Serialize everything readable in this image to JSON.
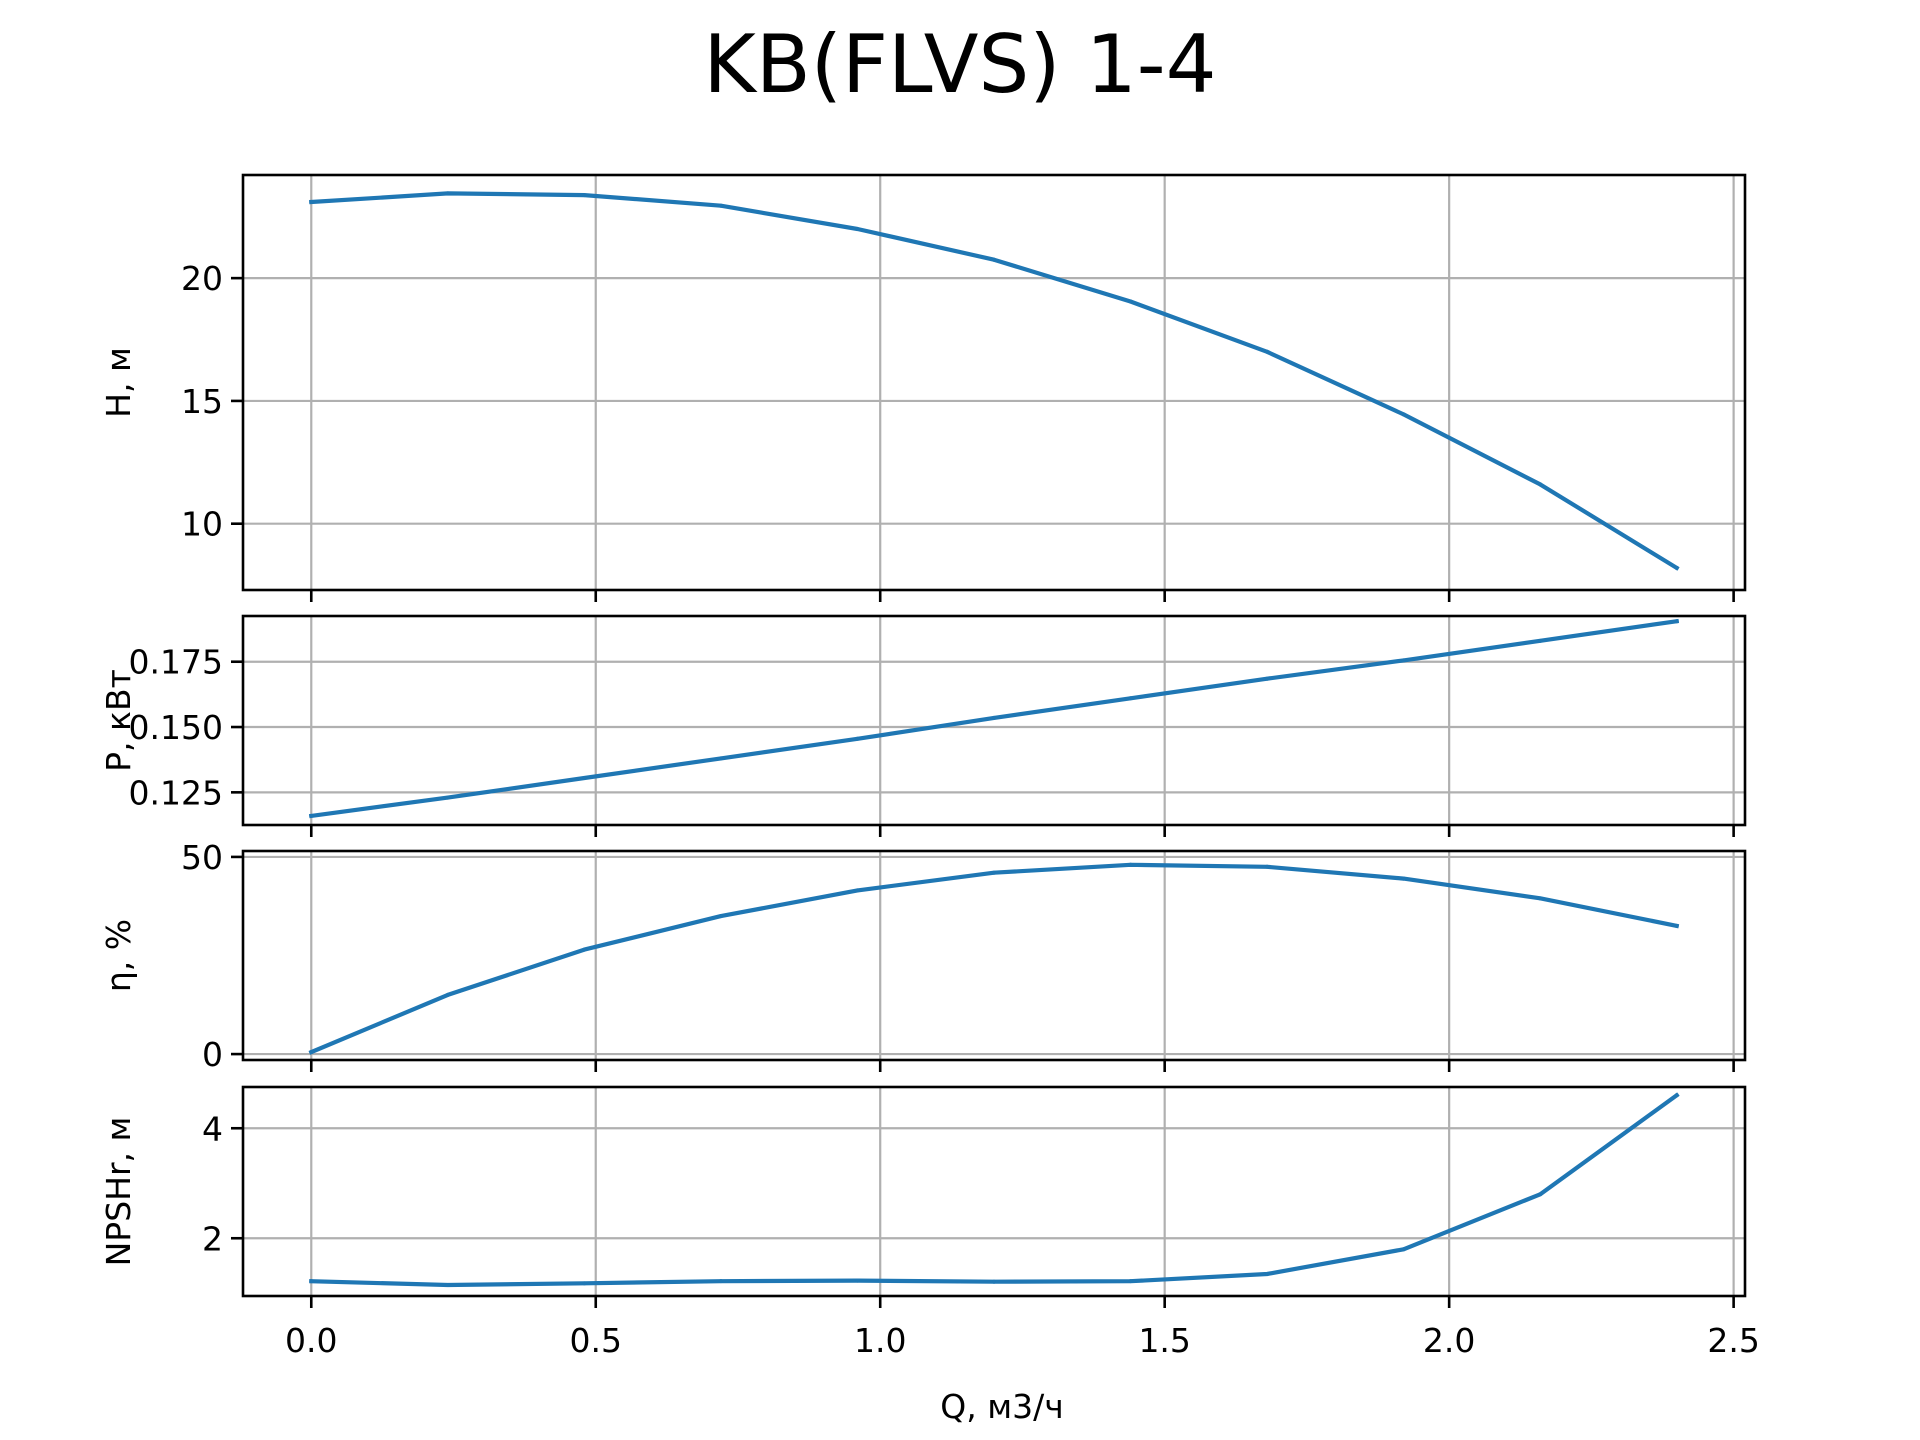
{
  "chart_data": {
    "type": "line",
    "title": "KB(FLVS) 1-4",
    "xlabel": "Q, м3/ч",
    "x": [
      0.0,
      0.24,
      0.48,
      0.72,
      0.96,
      1.2,
      1.44,
      1.68,
      1.92,
      2.16,
      2.4
    ],
    "xlim": [
      -0.12,
      2.52
    ],
    "xticks": [
      "0.0",
      "0.5",
      "1.0",
      "1.5",
      "2.0",
      "2.5"
    ],
    "xtick_values": [
      0,
      0.5,
      1.0,
      1.5,
      2.0,
      2.5
    ],
    "grid": true,
    "color": "#1f77b4",
    "panels": [
      {
        "ylabel": "H, м",
        "ylim": [
          7.3,
          24.2
        ],
        "yticks": [
          "10",
          "15",
          "20"
        ],
        "ytick_values": [
          10,
          15,
          20
        ],
        "values": [
          23.1,
          23.45,
          23.38,
          22.95,
          22.0,
          20.75,
          19.05,
          17.0,
          14.45,
          11.6,
          8.2
        ]
      },
      {
        "ylabel": "P, кВт",
        "ylim": [
          0.1125,
          0.1925
        ],
        "yticks": [
          "0.125",
          "0.150",
          "0.175"
        ],
        "ytick_values": [
          0.125,
          0.15,
          0.175
        ],
        "values": [
          0.116,
          0.123,
          0.1305,
          0.138,
          0.1455,
          0.1535,
          0.161,
          0.1685,
          0.1755,
          0.183,
          0.1905
        ]
      },
      {
        "ylabel": "η, %",
        "ylim": [
          -1.5,
          51.5
        ],
        "yticks": [
          "0",
          "50"
        ],
        "ytick_values": [
          0,
          50
        ],
        "values": [
          0.5,
          15.0,
          26.5,
          35.0,
          41.5,
          46.0,
          48.0,
          47.5,
          44.5,
          39.5,
          32.5
        ]
      },
      {
        "ylabel": "NPSHr, м",
        "ylim": [
          0.95,
          4.75
        ],
        "yticks": [
          "2",
          "4"
        ],
        "ytick_values": [
          2,
          4
        ],
        "values": [
          1.22,
          1.15,
          1.18,
          1.22,
          1.23,
          1.21,
          1.22,
          1.35,
          1.8,
          2.8,
          4.6
        ]
      }
    ]
  }
}
